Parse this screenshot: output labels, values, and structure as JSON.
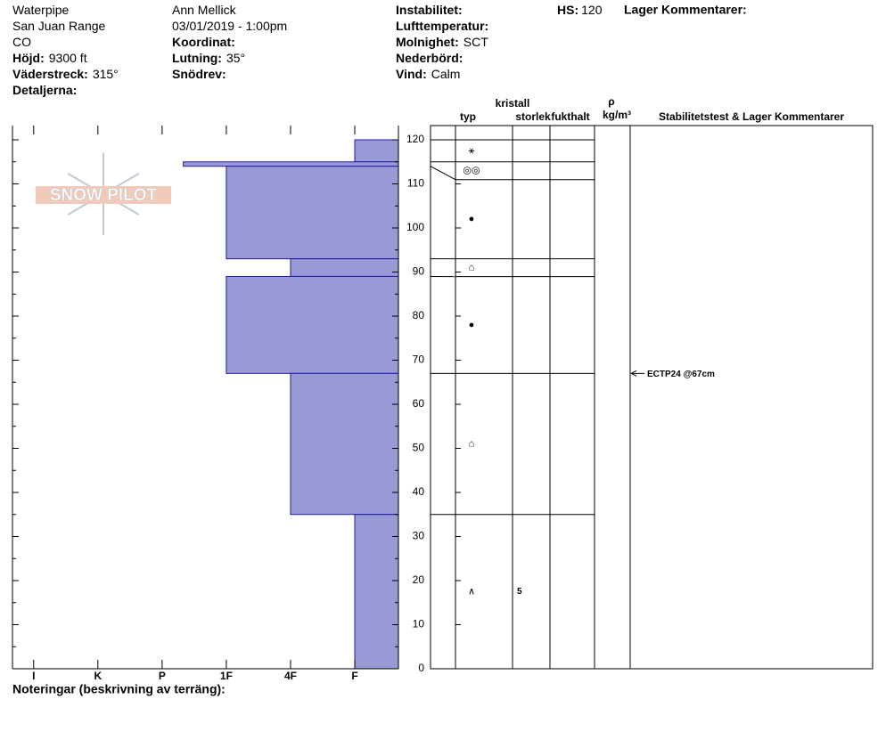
{
  "header": {
    "col1": [
      {
        "value": "Waterpipe"
      },
      {
        "value": "San Juan Range"
      },
      {
        "value": "CO"
      },
      {
        "label": "Höjd:",
        "value": "9300 ft"
      },
      {
        "label": "Väderstreck:",
        "value": "315°"
      },
      {
        "label": "Detaljerna:"
      }
    ],
    "col2": [
      {
        "value": "Ann Mellick"
      },
      {
        "value": "03/01/2019 - 1:00pm"
      },
      {
        "label": "Koordinat:"
      },
      {
        "label": "Lutning:",
        "value": "35°"
      },
      {
        "label": "Snödrev:"
      }
    ],
    "col3": [
      {
        "label": "Instabilitet:"
      },
      {
        "label": "Lufttemperatur:"
      },
      {
        "label": "Molnighet:",
        "value": "SCT"
      },
      {
        "label": "Nederbörd:"
      },
      {
        "label": "Vind:",
        "value": "Calm"
      }
    ],
    "hs": {
      "label": "HS:",
      "value": "120"
    },
    "comments_label": "Lager Kommentarer:"
  },
  "chart_data": {
    "type": "snow-profile",
    "logo": "SNOW PILOT",
    "ylim": [
      0,
      120
    ],
    "yticks": [
      0,
      10,
      20,
      30,
      40,
      50,
      60,
      70,
      80,
      90,
      100,
      110,
      120
    ],
    "xlim": [
      6.33,
      0.32
    ],
    "xticks": [
      {
        "value": 6,
        "label": "I"
      },
      {
        "value": 5,
        "label": "K"
      },
      {
        "value": 4,
        "label": "P"
      },
      {
        "value": 3,
        "label": "1F"
      },
      {
        "value": 2,
        "label": "4F"
      },
      {
        "value": 1,
        "label": "F"
      }
    ],
    "color": "#9999d6",
    "columns": {
      "type": "typ",
      "crystal": "kristall",
      "size": "storlek",
      "moisture": "fukthalt",
      "rho": "ρ",
      "density_unit": "kg/m³",
      "comments": "Stabilitetstest & Lager Kommentarer"
    },
    "layers": [
      {
        "top": 120,
        "bottom": 115,
        "hardness": 1,
        "grain": "⚹"
      },
      {
        "top": 115,
        "bottom": 114,
        "hardness": 3.67,
        "grain": "◎◎"
      },
      {
        "top": 114,
        "bottom": 93,
        "hardness": 3,
        "grain": "●"
      },
      {
        "top": 93,
        "bottom": 89,
        "hardness": 2,
        "grain": "⌂"
      },
      {
        "top": 89,
        "bottom": 67,
        "hardness": 3,
        "grain": "●"
      },
      {
        "top": 67,
        "bottom": 35,
        "hardness": 2,
        "grain": "⌂"
      },
      {
        "top": 35,
        "bottom": 0,
        "hardness": 1,
        "grain": "∧",
        "size": "5"
      }
    ],
    "tests": [
      {
        "depth": 67,
        "label": "ECTP24 @67cm"
      }
    ],
    "notes_label": "Noteringar (beskrivning av terräng):"
  }
}
